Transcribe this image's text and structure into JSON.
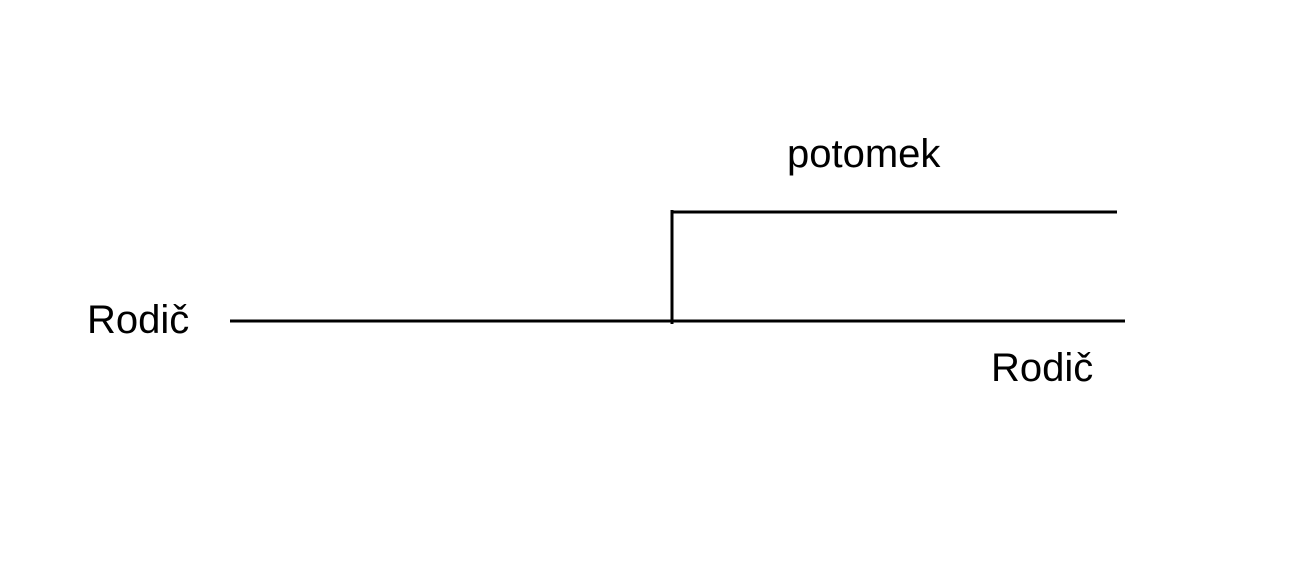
{
  "diagram": {
    "labels": {
      "parent_left": "Rodič",
      "parent_right": "Rodič",
      "child": "potomek"
    },
    "colors": {
      "background": "#ffffff",
      "line": "#000000",
      "text": "#000000"
    }
  }
}
